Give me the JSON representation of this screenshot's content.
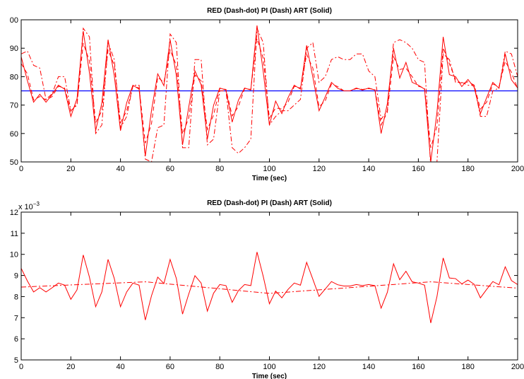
{
  "chart_data": [
    {
      "type": "line",
      "title": "RED (Dash-dot) PI (Dash) ART (Solid)",
      "x_label": "Time (sec)",
      "xlim": [
        0,
        200
      ],
      "xticks": [
        0,
        20,
        40,
        60,
        80,
        100,
        120,
        140,
        160,
        180,
        200
      ],
      "ylim": [
        50,
        100
      ],
      "yticks": [
        50,
        60,
        70,
        80,
        90,
        {
          "value": 100,
          "label": "00"
        }
      ],
      "x": [
        0,
        2.5,
        5,
        7.5,
        10,
        12.5,
        15,
        17.5,
        20,
        22.5,
        25,
        27.5,
        30,
        32.5,
        35,
        37.5,
        40,
        42.5,
        45,
        47.5,
        50,
        52.5,
        55,
        57.5,
        60,
        62.5,
        65,
        67.5,
        70,
        72.5,
        75,
        77.5,
        80,
        82.5,
        85,
        87.5,
        90,
        92.5,
        95,
        97.5,
        100,
        102.5,
        105,
        107.5,
        110,
        112.5,
        115,
        117.5,
        120,
        122.5,
        125,
        127.5,
        130,
        132.5,
        135,
        137.5,
        140,
        142.5,
        145,
        147.5,
        150,
        152.5,
        155,
        157.5,
        160,
        162.5,
        165,
        167.5,
        170,
        172.5,
        175,
        177.5,
        180,
        182.5,
        185,
        187.5,
        190,
        192.5,
        195,
        197.5,
        200
      ],
      "reference_line": {
        "value": 75,
        "color": "#0000ff"
      },
      "series": [
        {
          "style": "dashdot",
          "color": "#ff0000",
          "values": [
            88,
            89,
            84,
            83,
            72,
            74,
            80,
            80,
            68,
            70,
            97,
            94,
            60,
            63,
            92,
            86,
            62,
            66,
            77,
            77,
            51,
            50,
            62,
            63,
            95,
            92,
            55,
            55,
            86,
            86,
            56,
            58,
            75,
            75,
            55,
            53,
            55,
            58,
            97,
            92,
            63,
            66,
            68,
            68,
            70,
            72,
            90,
            92,
            78,
            80,
            86,
            87,
            86,
            86,
            88,
            88,
            82,
            80,
            65,
            68,
            92,
            93,
            92,
            90,
            86,
            85,
            48,
            50,
            88,
            86,
            78,
            78,
            77,
            77,
            66,
            66,
            75,
            76,
            89,
            88,
            80
          ]
        },
        {
          "style": "dash",
          "color": "#ff0000",
          "values": [
            84.6,
            81,
            71.8,
            73,
            71.8,
            73,
            76.6,
            76,
            67.8,
            70.5,
            91.8,
            85.5,
            63.8,
            68,
            89.4,
            84,
            63.8,
            68,
            76.6,
            76,
            56.6,
            63.5,
            79.8,
            78,
            89.4,
            84,
            59.8,
            65.5,
            80.6,
            78.5,
            61.4,
            66.5,
            75.8,
            75.5,
            66.2,
            69.5,
            75.8,
            75.5,
            93.4,
            86.5,
            65.4,
            69,
            68.6,
            71,
            76.6,
            76,
            87.8,
            83,
            69.4,
            71.5,
            77.4,
            76.5,
            75,
            75,
            75.8,
            75.5,
            75.8,
            75.5,
            63,
            67.5,
            87,
            82.5,
            83,
            80,
            76.6,
            76,
            55,
            62.5,
            90.2,
            84.5,
            79,
            77.5,
            78.2,
            77,
            68.6,
            71,
            77.4,
            76.5,
            85.4,
            81.5,
            75.8
          ]
        },
        {
          "style": "solid",
          "color": "#ff0000",
          "values": [
            87,
            78.6,
            71,
            73.8,
            71,
            73.8,
            77,
            75.6,
            66,
            72.3,
            96,
            81.3,
            61,
            70.8,
            93,
            80.4,
            61,
            70.8,
            77,
            75.6,
            52,
            68.1,
            81,
            76.8,
            93,
            80.4,
            56,
            69.3,
            82,
            77.1,
            58,
            69.9,
            76,
            75.3,
            64,
            71.7,
            76,
            75.3,
            98,
            81.9,
            63,
            71.4,
            67,
            72.6,
            77,
            75.6,
            91,
            79.8,
            68,
            72.9,
            78,
            75.9,
            75,
            75,
            76,
            75.3,
            76,
            75.3,
            60,
            70.5,
            90,
            79.5,
            85,
            78,
            77,
            75.6,
            50,
            67.5,
            94,
            80.7,
            80,
            76.5,
            79,
            76.2,
            67,
            72.6,
            78,
            75.9,
            88,
            78.9,
            76
          ]
        }
      ]
    },
    {
      "type": "line",
      "title": "RED (Dash-dot) PI (Dash) ART (Solid)",
      "x_label": "Time (sec)",
      "y_multiplier": {
        "base": "x 10",
        "exponent": "−3"
      },
      "xlim": [
        0,
        200
      ],
      "xticks": [
        0,
        20,
        40,
        60,
        80,
        100,
        120,
        140,
        160,
        180,
        200
      ],
      "ylim": [
        5,
        12
      ],
      "yticks": [
        5,
        6,
        7,
        8,
        9,
        10,
        11,
        12
      ],
      "x": [
        0,
        2.5,
        5,
        7.5,
        10,
        12.5,
        15,
        17.5,
        20,
        22.5,
        25,
        27.5,
        30,
        32.5,
        35,
        37.5,
        40,
        42.5,
        45,
        47.5,
        50,
        52.5,
        55,
        57.5,
        60,
        62.5,
        65,
        67.5,
        70,
        72.5,
        75,
        77.5,
        80,
        82.5,
        85,
        87.5,
        90,
        92.5,
        95,
        97.5,
        100,
        102.5,
        105,
        107.5,
        110,
        112.5,
        115,
        117.5,
        120,
        122.5,
        125,
        127.5,
        130,
        132.5,
        135,
        137.5,
        140,
        142.5,
        145,
        147.5,
        150,
        152.5,
        155,
        157.5,
        160,
        162.5,
        165,
        167.5,
        170,
        172.5,
        175,
        177.5,
        180,
        182.5,
        185,
        187.5,
        190,
        192.5,
        195,
        197.5,
        200
      ],
      "series": [
        {
          "style": "dashdot",
          "color": "#ff0000",
          "x": [
            0,
            50,
            100,
            165,
            200
          ],
          "values": [
            8.45,
            8.7,
            8.15,
            8.7,
            8.4
          ]
        },
        {
          "style": "solid",
          "color": "#ff0000",
          "values": [
            9.34,
            8.74,
            8.22,
            8.42,
            8.22,
            8.42,
            8.64,
            8.54,
            7.87,
            8.32,
            9.97,
            8.92,
            7.52,
            8.22,
            9.76,
            8.86,
            7.52,
            8.22,
            8.64,
            8.54,
            6.89,
            8.04,
            8.92,
            8.62,
            9.76,
            8.86,
            7.17,
            8.12,
            8.99,
            8.64,
            7.31,
            8.16,
            8.57,
            8.52,
            7.73,
            8.28,
            8.57,
            8.52,
            10.11,
            8.96,
            7.66,
            8.26,
            7.94,
            8.34,
            8.64,
            8.54,
            9.62,
            8.82,
            8.01,
            8.36,
            8.71,
            8.56,
            8.5,
            8.5,
            8.57,
            8.52,
            8.57,
            8.52,
            7.45,
            8.2,
            9.55,
            8.8,
            9.2,
            8.7,
            8.64,
            8.54,
            6.75,
            8,
            9.83,
            8.88,
            8.85,
            8.6,
            8.78,
            8.58,
            7.94,
            8.34,
            8.71,
            8.56,
            9.41,
            8.76,
            8.57
          ]
        }
      ]
    }
  ]
}
